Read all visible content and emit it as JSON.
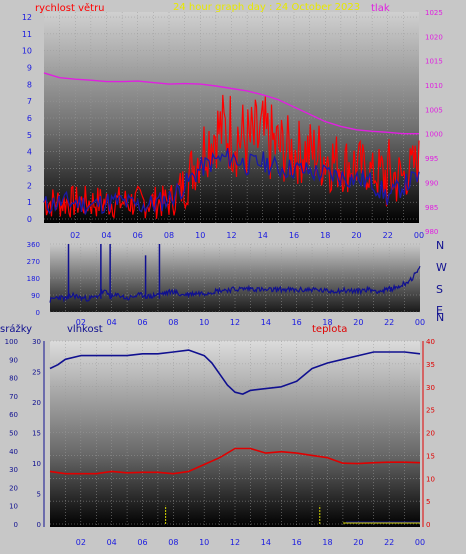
{
  "header": {
    "left_label": "rychlost větru",
    "title": "24 hour graph day : 24 October 2023",
    "right_label": "tlak"
  },
  "colors": {
    "frame": "#c7c7c7",
    "wind": "#ff0000",
    "wind_avg": "#1a1aa8",
    "pressure": "#e020e0",
    "direction": "#101090",
    "humidity": "#101090",
    "temperature": "#e00000",
    "rain": "#d8d800",
    "title": "#e8e800",
    "axis_left": "#1a1ae0",
    "axis_right": "#e020e0"
  },
  "chart_data": [
    {
      "type": "line",
      "title": "24 hour graph day : 24 October 2023",
      "x_ticks": [
        "02",
        "04",
        "06",
        "08",
        "10",
        "12",
        "14",
        "16",
        "18",
        "20",
        "22",
        "00"
      ],
      "x_range": [
        0,
        24
      ],
      "left_axis": {
        "label": "rychlost větru",
        "ticks": [
          "0",
          "1",
          "2",
          "3",
          "4",
          "5",
          "6",
          "7",
          "8",
          "9",
          "10",
          "11",
          "12"
        ],
        "range": [
          0,
          12.3
        ]
      },
      "right_axis": {
        "label": "tlak",
        "ticks": [
          "980",
          "985",
          "990",
          "995",
          "1000",
          "1005",
          "1010",
          "1015",
          "1020",
          "1025"
        ],
        "range": [
          979,
          1025
        ]
      },
      "series": [
        {
          "name": "rychlost větru",
          "axis": "left",
          "x": [
            0,
            1,
            2,
            3,
            4,
            5,
            6,
            7,
            8,
            9,
            10,
            11,
            12,
            13,
            14,
            15,
            16,
            17,
            18,
            19,
            20,
            21,
            22,
            23,
            24
          ],
          "min": [
            0,
            0,
            0,
            0,
            0,
            0,
            0,
            0,
            0,
            0.5,
            2,
            3,
            2.5,
            2,
            2,
            2,
            2,
            2,
            1.5,
            1.5,
            1.5,
            1.5,
            0,
            1,
            2
          ],
          "max": [
            2,
            2,
            2,
            2,
            2,
            2,
            2,
            2,
            2,
            3.5,
            6,
            7.5,
            8,
            7,
            7.5,
            6.5,
            6,
            6,
            6,
            5,
            5,
            4,
            5,
            4,
            5
          ]
        },
        {
          "axis": "left",
          "x": [
            0,
            1,
            2,
            3,
            4,
            5,
            6,
            7,
            8,
            9,
            10,
            11,
            12,
            13,
            14,
            15,
            16,
            17,
            18,
            19,
            20,
            21,
            22,
            23,
            24
          ],
          "y": [
            0.8,
            1,
            1,
            0.8,
            1,
            1,
            0.8,
            0.9,
            1.2,
            2,
            3,
            3.5,
            3.7,
            3.2,
            3.4,
            3,
            3,
            2.8,
            2.7,
            2.5,
            2.4,
            2.2,
            1.3,
            2,
            2.5
          ]
        },
        {
          "name": "tlak",
          "axis": "right",
          "x": [
            0,
            1,
            2,
            3,
            4,
            5,
            6,
            7,
            8,
            9,
            10,
            11,
            12,
            13,
            14,
            15,
            16,
            17,
            18,
            19,
            20,
            21,
            22,
            23,
            24
          ],
          "y": [
            1012.5,
            1011.5,
            1011.2,
            1011,
            1010.7,
            1010.7,
            1010.8,
            1010.5,
            1010.2,
            1010.3,
            1010.2,
            1009.8,
            1009.3,
            1008.8,
            1008,
            1007,
            1005.5,
            1004,
            1002.5,
            1001.5,
            1000.8,
            1000.5,
            1000.3,
            1000,
            1000
          ]
        }
      ]
    },
    {
      "type": "line",
      "x_ticks": [
        "02",
        "04",
        "06",
        "08",
        "10",
        "12",
        "14",
        "16",
        "18",
        "20",
        "22",
        "00"
      ],
      "x_range": [
        0,
        24
      ],
      "left_axis": {
        "ticks": [
          "0",
          "90",
          "180",
          "270",
          "360"
        ],
        "range": [
          0,
          360
        ]
      },
      "right_axis": {
        "labels": [
          "N",
          "W",
          "S",
          "E",
          "N"
        ]
      },
      "series": [
        {
          "axis": "left",
          "x": [
            0,
            0.5,
            1,
            1.5,
            2,
            2.5,
            3,
            3.5,
            4,
            4.5,
            5,
            5.5,
            6,
            6.5,
            7,
            7.5,
            8,
            8.5,
            9,
            9.5,
            10,
            11,
            12,
            13,
            14,
            15,
            16,
            17,
            18,
            19,
            20,
            20.5,
            21,
            21.5,
            22,
            22.5,
            23,
            23.5,
            24
          ],
          "y": [
            60,
            80,
            70,
            90,
            75,
            70,
            80,
            110,
            80,
            90,
            70,
            85,
            90,
            80,
            95,
            100,
            110,
            90,
            95,
            100,
            100,
            115,
            120,
            125,
            115,
            120,
            115,
            120,
            110,
            115,
            110,
            120,
            115,
            110,
            120,
            130,
            150,
            180,
            230
          ]
        }
      ]
    },
    {
      "type": "line",
      "x_ticks": [
        "02",
        "04",
        "06",
        "08",
        "10",
        "12",
        "14",
        "16",
        "18",
        "20",
        "22",
        "00"
      ],
      "x_range": [
        0,
        24
      ],
      "axes": {
        "srazky": {
          "label": "srážky",
          "ticks": [
            "0",
            "10",
            "20",
            "30",
            "40",
            "50",
            "60",
            "70",
            "80",
            "90",
            "100"
          ],
          "range": [
            0,
            100
          ]
        },
        "vlhkost": {
          "label": "vlhkost",
          "ticks": [
            "0",
            "5",
            "10",
            "15",
            "20",
            "25",
            "30"
          ],
          "range": [
            0,
            30
          ]
        },
        "teplota": {
          "label": "teplota",
          "ticks": [
            "0",
            "5",
            "10",
            "15",
            "20",
            "25",
            "30",
            "35",
            "40"
          ],
          "range": [
            0,
            40
          ]
        }
      },
      "series": [
        {
          "name": "vlhkost",
          "axis": "srazky",
          "x": [
            0,
            0.5,
            1,
            2,
            3,
            4,
            5,
            6,
            7,
            8,
            9,
            10,
            10.5,
            11,
            11.5,
            12,
            12.5,
            13,
            14,
            15,
            16,
            17,
            18,
            19,
            20,
            21,
            22,
            23,
            24
          ],
          "y": [
            85,
            87,
            90,
            92,
            92,
            92,
            92,
            93,
            93,
            94,
            95,
            92,
            88,
            82,
            76,
            72,
            71,
            73,
            74,
            75,
            78,
            85,
            88,
            90,
            92,
            94,
            94,
            94,
            93
          ]
        },
        {
          "name": "teplota",
          "axis": "teplota",
          "x": [
            0,
            1,
            2,
            3,
            4,
            5,
            6,
            7,
            8,
            9,
            10,
            11,
            12,
            13,
            14,
            15,
            16,
            17,
            18,
            19,
            20,
            21,
            22,
            23,
            24
          ],
          "y": [
            11.5,
            11,
            11,
            11,
            11.5,
            11.2,
            11.3,
            11.3,
            11,
            11.5,
            13,
            14.5,
            16.5,
            16.5,
            15.5,
            15.8,
            15.5,
            15,
            14.5,
            13.3,
            13.2,
            13.4,
            13.5,
            13.5,
            13.4
          ]
        },
        {
          "name": "srážky",
          "axis": "srazky",
          "x": [
            7.5,
            17.5
          ],
          "y": [
            10,
            10
          ]
        }
      ]
    }
  ]
}
